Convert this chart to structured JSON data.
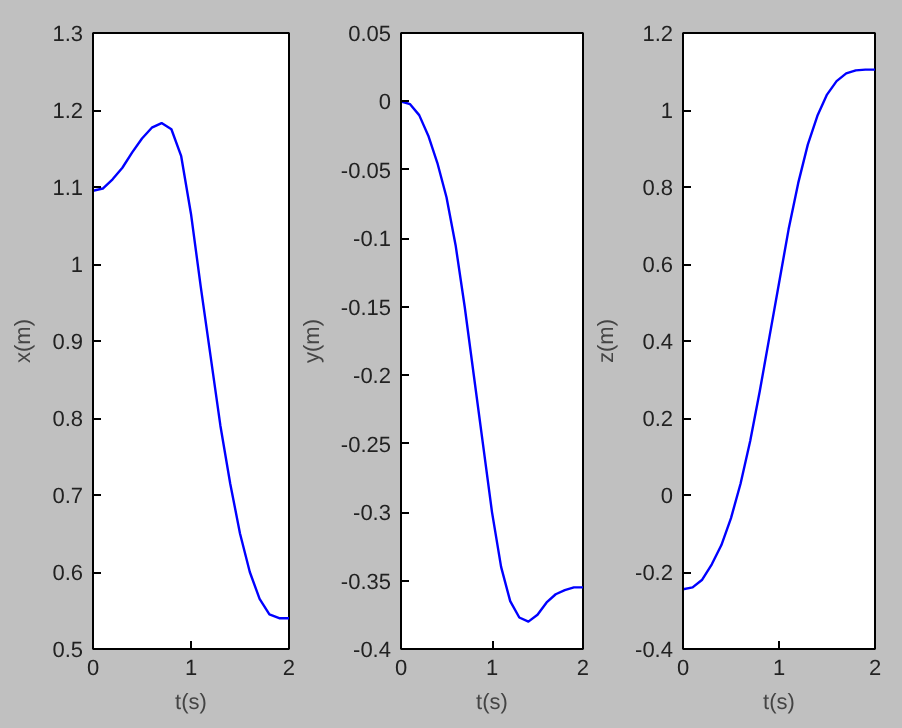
{
  "chart_data": [
    {
      "type": "line",
      "xlabel": "t(s)",
      "ylabel": "x(m)",
      "xlim": [
        0,
        2
      ],
      "ylim": [
        0.5,
        1.3
      ],
      "xticks": [
        0,
        1,
        2
      ],
      "yticks": [
        0.5,
        0.6,
        0.7,
        0.8,
        0.9,
        1,
        1.1,
        1.2,
        1.3
      ],
      "grid": false,
      "x": [
        0,
        0.1,
        0.2,
        0.3,
        0.4,
        0.5,
        0.6,
        0.7,
        0.8,
        0.9,
        1.0,
        1.1,
        1.2,
        1.3,
        1.4,
        1.5,
        1.6,
        1.7,
        1.8,
        1.9,
        2.0
      ],
      "series": [
        {
          "color": "#0000ff",
          "values": [
            1.095,
            1.098,
            1.11,
            1.125,
            1.145,
            1.163,
            1.177,
            1.183,
            1.175,
            1.14,
            1.065,
            0.97,
            0.88,
            0.79,
            0.715,
            0.65,
            0.6,
            0.565,
            0.545,
            0.54,
            0.54
          ]
        }
      ]
    },
    {
      "type": "line",
      "xlabel": "t(s)",
      "ylabel": "y(m)",
      "xlim": [
        0,
        2
      ],
      "ylim": [
        -0.4,
        0.05
      ],
      "xticks": [
        0,
        1,
        2
      ],
      "yticks": [
        -0.4,
        -0.35,
        -0.3,
        -0.25,
        -0.2,
        -0.15,
        -0.1,
        -0.05,
        0,
        0.05
      ],
      "grid": false,
      "x": [
        0,
        0.1,
        0.2,
        0.3,
        0.4,
        0.5,
        0.6,
        0.7,
        0.8,
        0.9,
        1.0,
        1.1,
        1.2,
        1.3,
        1.4,
        1.5,
        1.6,
        1.7,
        1.8,
        1.9,
        2.0
      ],
      "series": [
        {
          "color": "#0000ff",
          "values": [
            0,
            -0.002,
            -0.01,
            -0.025,
            -0.045,
            -0.07,
            -0.105,
            -0.15,
            -0.2,
            -0.25,
            -0.3,
            -0.34,
            -0.365,
            -0.377,
            -0.38,
            -0.375,
            -0.366,
            -0.36,
            -0.357,
            -0.355,
            -0.355
          ]
        }
      ]
    },
    {
      "type": "line",
      "xlabel": "t(s)",
      "ylabel": "z(m)",
      "xlim": [
        0,
        2
      ],
      "ylim": [
        -0.4,
        1.2
      ],
      "xticks": [
        0,
        1,
        2
      ],
      "yticks": [
        -0.4,
        -0.2,
        0,
        0.2,
        0.4,
        0.6,
        0.8,
        1,
        1.2
      ],
      "grid": false,
      "x": [
        0,
        0.1,
        0.2,
        0.3,
        0.4,
        0.5,
        0.6,
        0.7,
        0.8,
        0.9,
        1.0,
        1.1,
        1.2,
        1.3,
        1.4,
        1.5,
        1.6,
        1.7,
        1.8,
        1.9,
        2.0
      ],
      "series": [
        {
          "color": "#0000ff",
          "values": [
            -0.245,
            -0.24,
            -0.22,
            -0.18,
            -0.13,
            -0.06,
            0.03,
            0.14,
            0.27,
            0.41,
            0.55,
            0.69,
            0.81,
            0.91,
            0.985,
            1.04,
            1.075,
            1.095,
            1.103,
            1.105,
            1.105
          ]
        }
      ]
    }
  ]
}
